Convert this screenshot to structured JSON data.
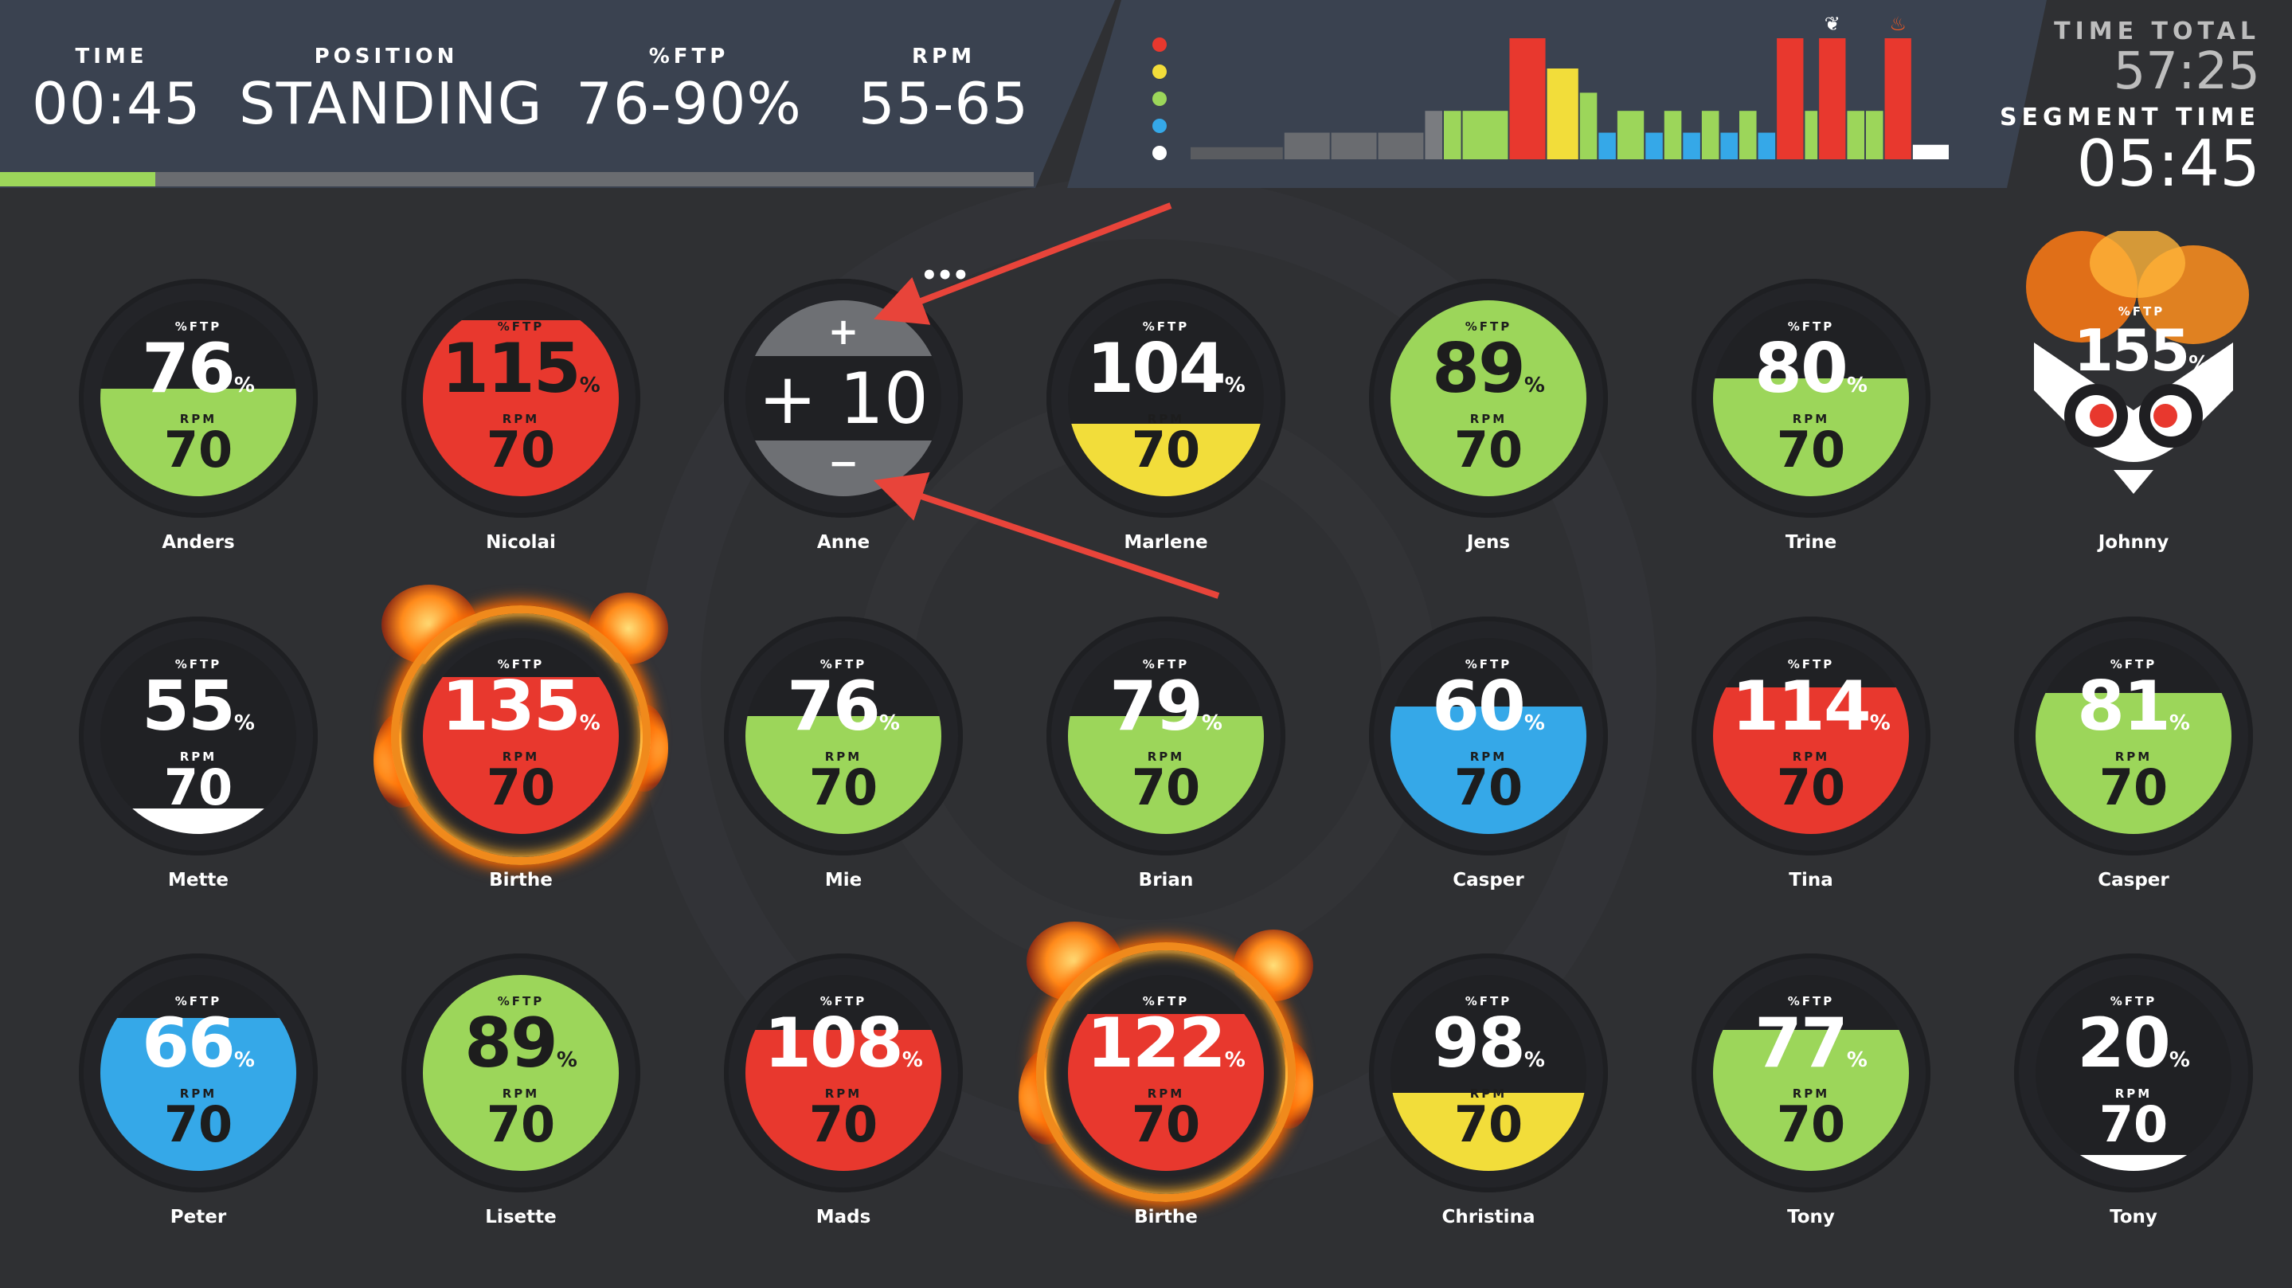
{
  "header": {
    "time": {
      "label": "TIME",
      "value": "00:45"
    },
    "position": {
      "label": "POSITION",
      "value": "STANDING"
    },
    "ftp": {
      "label": "%FTP",
      "value": "76-90%"
    },
    "rpm": {
      "label": "RPM",
      "value": "55-65"
    },
    "progress_fraction": 0.15,
    "time_total": {
      "label": "TIME TOTAL",
      "value": "57:25"
    },
    "segment_time": {
      "label": "SEGMENT TIME",
      "value": "05:45"
    }
  },
  "legend_colors": [
    "#e8382e",
    "#f2dd3a",
    "#9cd65a",
    "#35a8e8",
    "#ffffff"
  ],
  "chart_data": {
    "type": "bar",
    "title": "",
    "segments": [
      {
        "height": 0.1,
        "color": "#5a5c60",
        "width": 2
      },
      {
        "height": 0.22,
        "color": "#6a6c70",
        "width": 1
      },
      {
        "height": 0.22,
        "color": "#6a6c70",
        "width": 1
      },
      {
        "height": 0.22,
        "color": "#6a6c70",
        "width": 1
      },
      {
        "height": 0.4,
        "color": "#7a7c80",
        "width": 0.4
      },
      {
        "height": 0.4,
        "color": "#9cd65a",
        "width": 0.4
      },
      {
        "height": 0.4,
        "color": "#9cd65a",
        "width": 1
      },
      {
        "height": 1.0,
        "color": "#e8382e",
        "width": 0.8
      },
      {
        "height": 0.75,
        "color": "#f2dd3a",
        "width": 0.7
      },
      {
        "height": 0.55,
        "color": "#9cd65a",
        "width": 0.4
      },
      {
        "height": 0.22,
        "color": "#35a8e8",
        "width": 0.4
      },
      {
        "height": 0.4,
        "color": "#9cd65a",
        "width": 0.6
      },
      {
        "height": 0.22,
        "color": "#35a8e8",
        "width": 0.4
      },
      {
        "height": 0.4,
        "color": "#9cd65a",
        "width": 0.4
      },
      {
        "height": 0.22,
        "color": "#35a8e8",
        "width": 0.4
      },
      {
        "height": 0.4,
        "color": "#9cd65a",
        "width": 0.4
      },
      {
        "height": 0.22,
        "color": "#35a8e8",
        "width": 0.4
      },
      {
        "height": 0.4,
        "color": "#9cd65a",
        "width": 0.4
      },
      {
        "height": 0.22,
        "color": "#35a8e8",
        "width": 0.4
      },
      {
        "height": 1.0,
        "color": "#e8382e",
        "width": 0.6
      },
      {
        "height": 0.4,
        "color": "#9cd65a",
        "width": 0.3
      },
      {
        "height": 1.0,
        "color": "#e8382e",
        "width": 0.6
      },
      {
        "height": 0.4,
        "color": "#9cd65a",
        "width": 0.4
      },
      {
        "height": 0.4,
        "color": "#9cd65a",
        "width": 0.4
      },
      {
        "height": 1.0,
        "color": "#e8382e",
        "width": 0.6
      },
      {
        "height": 0.12,
        "color": "#ffffff",
        "width": 0.8
      }
    ],
    "markers": [
      {
        "segment": 21,
        "icon": "owl-icon"
      },
      {
        "segment": 24,
        "icon": "fire-icon"
      }
    ]
  },
  "riders": [
    {
      "name": "Anders",
      "ftp_label": "%FTP",
      "ftp": "76",
      "pct": "%",
      "rpm_label": "RPM",
      "rpm": "70",
      "level": 0.55,
      "color": "#9cd65a",
      "fire": false
    },
    {
      "name": "Nicolai",
      "ftp_label": "%FTP",
      "ftp": "115",
      "pct": "%",
      "rpm_label": "RPM",
      "rpm": "70",
      "level": 0.9,
      "color": "#e8382e",
      "fire": false
    },
    {
      "name": "Anne",
      "adjust": true,
      "plus": "+",
      "minus": "−",
      "value": "+ 10",
      "more": "•••"
    },
    {
      "name": "Marlene",
      "ftp_label": "%FTP",
      "ftp": "104",
      "pct": "%",
      "rpm_label": "RPM",
      "rpm": "70",
      "level": 0.37,
      "color": "#f2dd3a",
      "fire": false
    },
    {
      "name": "Jens",
      "ftp_label": "%FTP",
      "ftp": "89",
      "pct": "%",
      "rpm_label": "RPM",
      "rpm": "70",
      "level": 1.0,
      "color": "#9cd65a",
      "fire": false
    },
    {
      "name": "Trine",
      "ftp_label": "%FTP",
      "ftp": "80",
      "pct": "%",
      "rpm_label": "RPM",
      "rpm": "70",
      "level": 0.6,
      "color": "#9cd65a",
      "fire": false
    },
    {
      "name": "Johnny",
      "owl": true,
      "ftp_label": "%FTP",
      "ftp": "155",
      "pct": "%"
    },
    {
      "name": "Mette",
      "ftp_label": "%FTP",
      "ftp": "55",
      "pct": "%",
      "rpm_label": "RPM",
      "rpm": "70",
      "level": 0.13,
      "color": "#ffffff",
      "fire": false
    },
    {
      "name": "Birthe",
      "ftp_label": "%FTP",
      "ftp": "135",
      "pct": "%",
      "rpm_label": "RPM",
      "rpm": "70",
      "level": 0.8,
      "color": "#e8382e",
      "fire": true
    },
    {
      "name": "Mie",
      "ftp_label": "%FTP",
      "ftp": "76",
      "pct": "%",
      "rpm_label": "RPM",
      "rpm": "70",
      "level": 0.6,
      "color": "#9cd65a",
      "fire": false
    },
    {
      "name": "Brian",
      "ftp_label": "%FTP",
      "ftp": "79",
      "pct": "%",
      "rpm_label": "RPM",
      "rpm": "70",
      "level": 0.6,
      "color": "#9cd65a",
      "fire": false
    },
    {
      "name": "Casper",
      "ftp_label": "%FTP",
      "ftp": "60",
      "pct": "%",
      "rpm_label": "RPM",
      "rpm": "70",
      "level": 0.65,
      "color": "#35a8e8",
      "fire": false
    },
    {
      "name": "Tina",
      "ftp_label": "%FTP",
      "ftp": "114",
      "pct": "%",
      "rpm_label": "RPM",
      "rpm": "70",
      "level": 0.75,
      "color": "#e8382e",
      "fire": false
    },
    {
      "name": "Casper",
      "ftp_label": "%FTP",
      "ftp": "81",
      "pct": "%",
      "rpm_label": "RPM",
      "rpm": "70",
      "level": 0.72,
      "color": "#9cd65a",
      "fire": false
    },
    {
      "name": "Peter",
      "ftp_label": "%FTP",
      "ftp": "66",
      "pct": "%",
      "rpm_label": "RPM",
      "rpm": "70",
      "level": 0.78,
      "color": "#35a8e8",
      "fire": false
    },
    {
      "name": "Lisette",
      "ftp_label": "%FTP",
      "ftp": "89",
      "pct": "%",
      "rpm_label": "RPM",
      "rpm": "70",
      "level": 1.0,
      "color": "#9cd65a",
      "fire": false
    },
    {
      "name": "Mads",
      "ftp_label": "%FTP",
      "ftp": "108",
      "pct": "%",
      "rpm_label": "RPM",
      "rpm": "70",
      "level": 0.72,
      "color": "#e8382e",
      "fire": false
    },
    {
      "name": "Birthe",
      "ftp_label": "%FTP",
      "ftp": "122",
      "pct": "%",
      "rpm_label": "RPM",
      "rpm": "70",
      "level": 0.8,
      "color": "#e8382e",
      "fire": true
    },
    {
      "name": "Christina",
      "ftp_label": "%FTP",
      "ftp": "98",
      "pct": "%",
      "rpm_label": "RPM",
      "rpm": "70",
      "level": 0.4,
      "color": "#f2dd3a",
      "fire": false
    },
    {
      "name": "Tony",
      "ftp_label": "%FTP",
      "ftp": "77",
      "pct": "%",
      "rpm_label": "RPM",
      "rpm": "70",
      "level": 0.72,
      "color": "#9cd65a",
      "fire": false
    },
    {
      "name": "Tony",
      "ftp_label": "%FTP",
      "ftp": "20",
      "pct": "%",
      "rpm_label": "RPM",
      "rpm": "70",
      "level": 0.08,
      "color": "#ffffff",
      "fire": false
    }
  ]
}
